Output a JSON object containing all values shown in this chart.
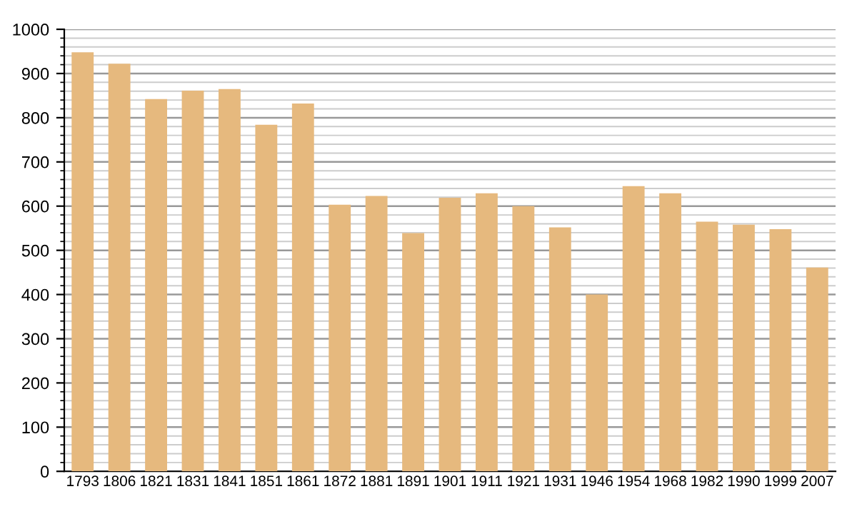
{
  "chart_data": {
    "type": "bar",
    "categories": [
      "1793",
      "1806",
      "1821",
      "1831",
      "1841",
      "1851",
      "1861",
      "1872",
      "1881",
      "1891",
      "1901",
      "1911",
      "1921",
      "1931",
      "1946",
      "1954",
      "1968",
      "1982",
      "1990",
      "1999",
      "2007"
    ],
    "values": [
      948,
      922,
      842,
      861,
      865,
      784,
      832,
      603,
      623,
      539,
      619,
      629,
      600,
      552,
      400,
      645,
      629,
      565,
      558,
      548,
      461
    ],
    "color": "#e6b97e",
    "ylim": [
      0,
      1000
    ],
    "yticks": [
      0,
      100,
      200,
      300,
      400,
      500,
      600,
      700,
      800,
      900,
      1000
    ],
    "grid": "y"
  }
}
